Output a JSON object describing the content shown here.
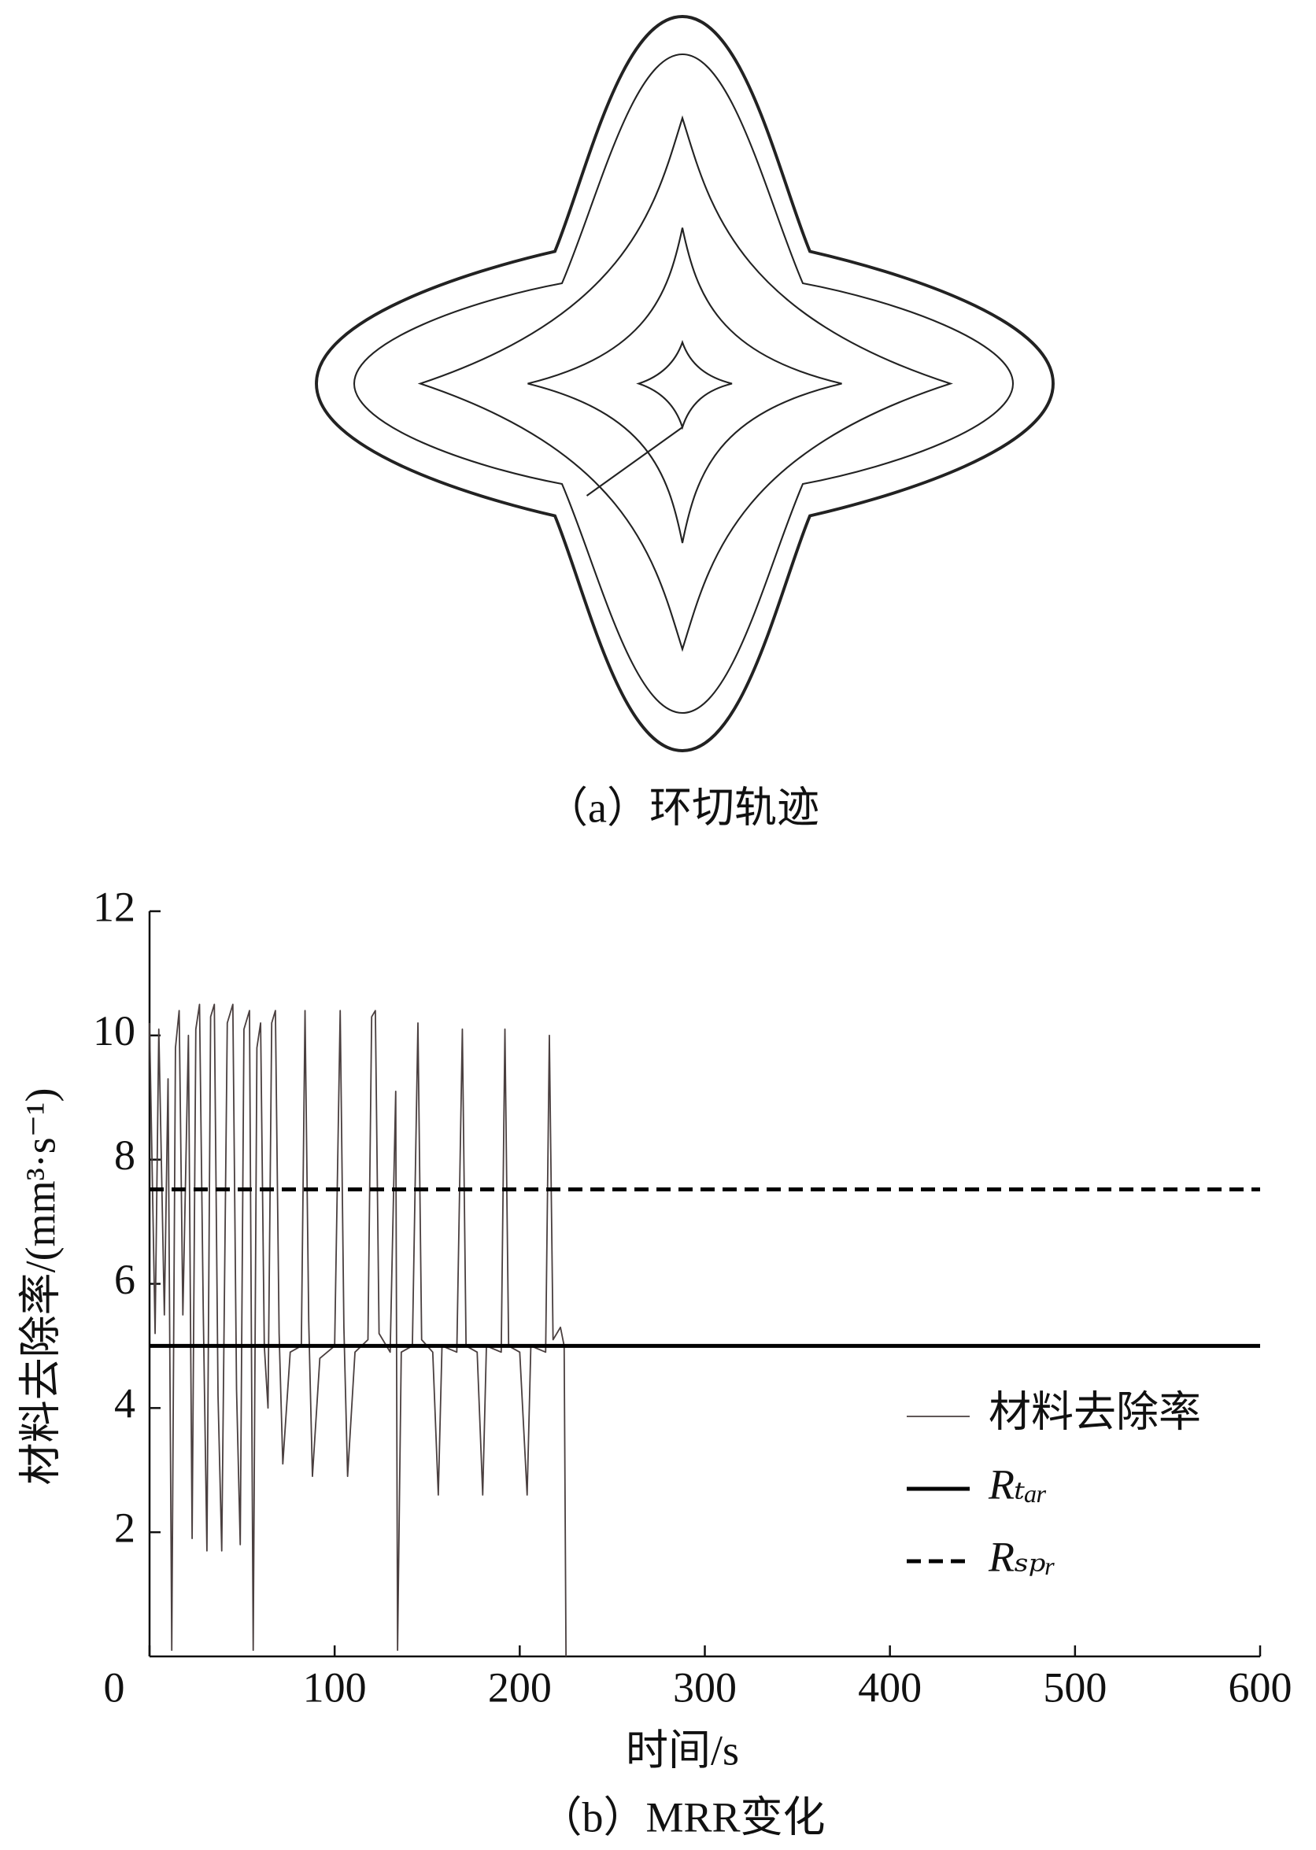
{
  "diagram": {
    "caption": "（a）环切轨迹"
  },
  "chart_data": {
    "type": "line",
    "caption": "（b）MRR变化",
    "xlabel": "时间/s",
    "ylabel": "材料去除率/(mm³·s⁻¹)",
    "xlim": [
      0,
      600
    ],
    "xticks": [
      0,
      100,
      200,
      300,
      400,
      500,
      600
    ],
    "ylim": [
      0,
      12
    ],
    "yticks": [
      2,
      4,
      6,
      8,
      10,
      12
    ],
    "legend": "lower right",
    "series": [
      {
        "name": "材料去除率",
        "color": "#4a3f3f",
        "linestyle": "solid",
        "x": [
          0,
          3,
          5,
          8,
          10,
          12,
          14,
          16,
          18,
          21,
          23,
          25,
          27,
          29,
          31,
          33,
          35,
          37,
          39,
          42,
          45,
          47,
          49,
          51,
          54,
          56,
          58,
          60,
          62,
          64,
          66,
          68,
          70,
          72,
          76,
          82,
          84,
          86,
          88,
          92,
          100,
          103,
          105,
          107,
          111,
          118,
          120,
          122,
          124,
          130,
          133,
          134,
          136,
          142,
          145,
          147,
          153,
          156,
          158,
          166,
          169,
          171,
          177,
          180,
          182,
          190,
          192,
          194,
          200,
          204,
          206,
          214,
          216,
          218,
          222,
          224,
          225
        ],
        "values": [
          10.2,
          5.2,
          10.1,
          5.5,
          9.3,
          0.1,
          9.8,
          10.4,
          5.5,
          10.0,
          1.9,
          10.1,
          10.5,
          5.6,
          1.7,
          10.3,
          10.5,
          4.2,
          1.7,
          10.2,
          10.5,
          4.3,
          1.8,
          10.1,
          10.4,
          0.1,
          9.8,
          10.2,
          5.0,
          4.0,
          10.2,
          10.4,
          5.2,
          3.1,
          4.9,
          5.0,
          10.4,
          5.4,
          2.9,
          4.8,
          5.0,
          10.4,
          5.3,
          2.9,
          4.9,
          5.1,
          10.3,
          10.4,
          5.2,
          4.9,
          9.1,
          0.1,
          4.9,
          5.0,
          10.2,
          5.1,
          4.9,
          2.6,
          5.0,
          4.9,
          10.1,
          5.0,
          4.9,
          2.6,
          5.0,
          4.9,
          10.1,
          5.0,
          4.9,
          2.6,
          5.0,
          4.9,
          10.0,
          5.1,
          5.3,
          5.0,
          0
        ]
      },
      {
        "name": "Rₜₐᵣ",
        "color": "#000000",
        "linestyle": "solid",
        "x": [
          0,
          600
        ],
        "values": [
          5,
          5
        ]
      },
      {
        "name": "Rₛₚᵣ",
        "color": "#000000",
        "linestyle": "dashed",
        "x": [
          0,
          600
        ],
        "values": [
          7.52,
          7.52
        ]
      }
    ]
  }
}
